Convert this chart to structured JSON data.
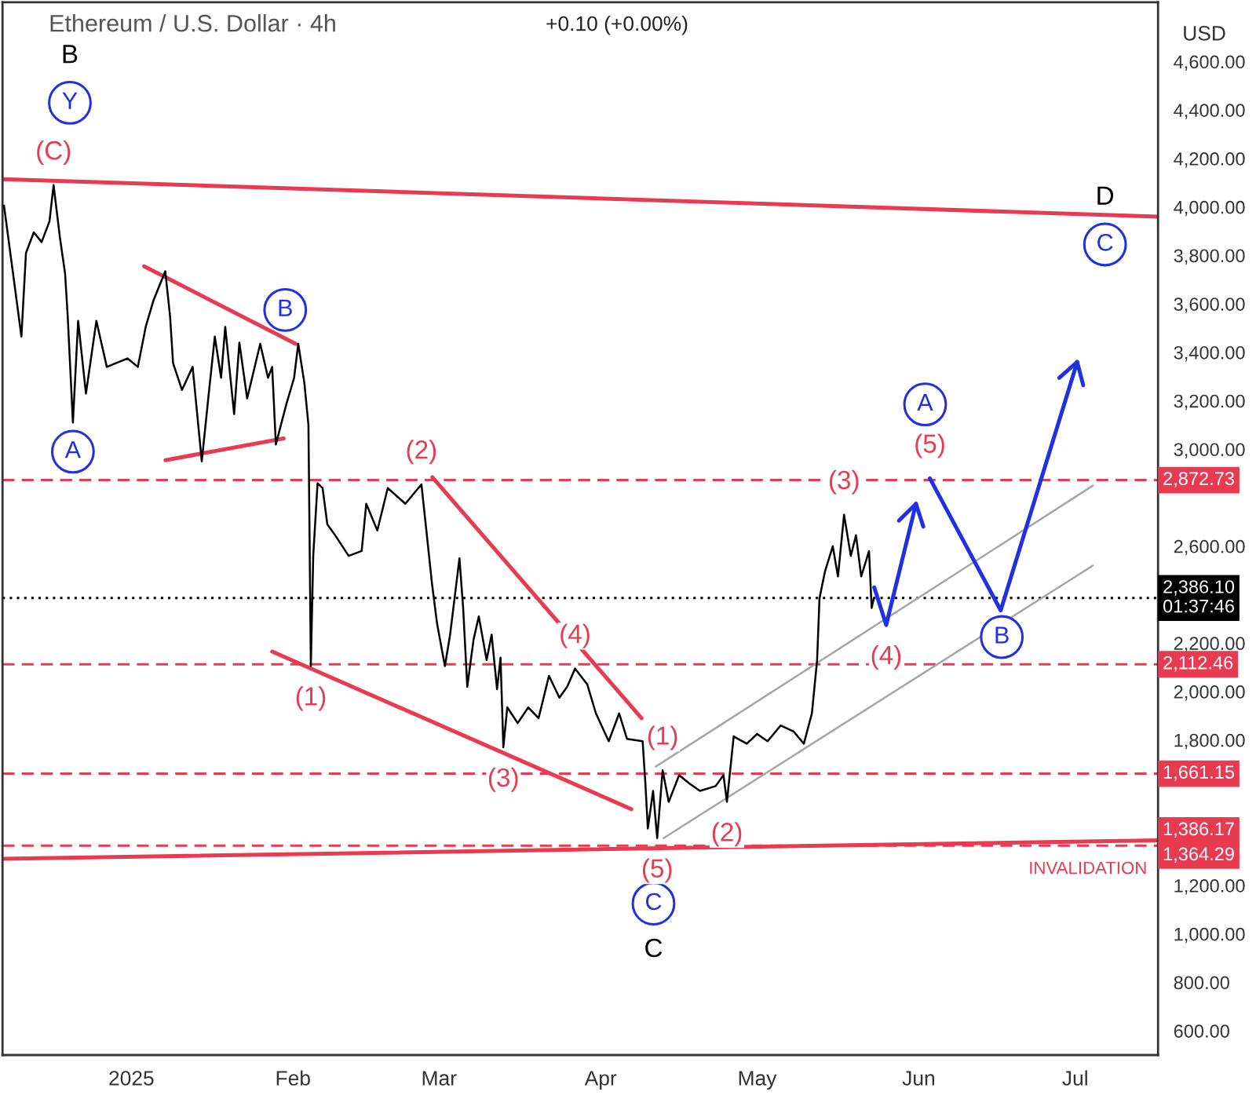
{
  "chart_data": {
    "type": "line",
    "title": "Ethereum / U.S. Dollar · 4h",
    "subtitle": "+0.10 (+0.00%)",
    "ylabel": "USD",
    "xlim": [
      "2024-12-07T07:00",
      "2025-07-16T21:00"
    ],
    "ylim": [
      500,
      4845
    ],
    "xticks": [
      {
        "value": "2025-01-01",
        "label": "2025"
      },
      {
        "value": "2025-02-01",
        "label": "Feb"
      },
      {
        "value": "2025-03-01",
        "label": "Mar"
      },
      {
        "value": "2025-04-01",
        "label": "Apr"
      },
      {
        "value": "2025-05-01",
        "label": "May"
      },
      {
        "value": "2025-06-01",
        "label": "Jun"
      },
      {
        "value": "2025-07-01",
        "label": "Jul"
      }
    ],
    "yticks": [
      {
        "value": 600,
        "label": "600.00"
      },
      {
        "value": 800,
        "label": "800.00"
      },
      {
        "value": 1000,
        "label": "1,000.00"
      },
      {
        "value": 1200,
        "label": "1,200.00"
      },
      {
        "value": 1800,
        "label": "1,800.00"
      },
      {
        "value": 2000,
        "label": "2,000.00"
      },
      {
        "value": 2200,
        "label": "2,200.00"
      },
      {
        "value": 2600,
        "label": "2,600.00"
      },
      {
        "value": 3000,
        "label": "3,000.00"
      },
      {
        "value": 3200,
        "label": "3,200.00"
      },
      {
        "value": 3400,
        "label": "3,400.00"
      },
      {
        "value": 3600,
        "label": "3,600.00"
      },
      {
        "value": 3800,
        "label": "3,800.00"
      },
      {
        "value": 4000,
        "label": "4,000.00"
      },
      {
        "value": 4200,
        "label": "4,200.00"
      },
      {
        "value": 4400,
        "label": "4,400.00"
      },
      {
        "value": 4600,
        "label": "4,600.00"
      }
    ],
    "ref_lines": [
      {
        "axis": "y",
        "value": 2872.73,
        "label": "2,872.73",
        "color": "#e83a50",
        "line_style": "dashed"
      },
      {
        "axis": "y",
        "value": 2386.1,
        "label": "2,386.10\n01:37:46",
        "color": "#000000",
        "line_style": "dotted"
      },
      {
        "axis": "y",
        "value": 2112.46,
        "label": "2,112.46",
        "color": "#e83a50",
        "line_style": "dashed"
      },
      {
        "axis": "y",
        "value": 1661.15,
        "label": "1,661.15",
        "color": "#e83a50",
        "line_style": "dashed"
      },
      {
        "axis": "y",
        "value": 1364.29,
        "label": "1,364.29",
        "color": "#e83a50",
        "line_style": "dashed"
      }
    ],
    "series": [
      {
        "color": "#000000",
        "x": [
          "2024-12-07T14:00",
          "2024-12-10T22:00",
          "2024-12-11T19:00",
          "2024-12-13T07:00",
          "2024-12-14T19:00",
          "2024-12-16T07:00",
          "2024-12-17T02:00",
          "2024-12-18T07:00",
          "2024-12-19T07:00",
          "2024-12-19T19:00",
          "2024-12-20T19:00",
          "2024-12-21T19:00",
          "2024-12-23T07:00",
          "2024-12-25T07:00",
          "2024-12-27T07:00",
          "2024-12-31T06:00",
          "2025-01-02T06:00",
          "2025-01-03T18:00",
          "2025-01-05T06:00",
          "2025-01-07T12:00",
          "2025-01-08T10:00",
          "2025-01-09T00:00",
          "2025-01-10T17:00",
          "2025-01-12T18:00",
          "2025-01-14T12:00",
          "2025-01-15T18:00",
          "2025-01-17T00:00",
          "2025-01-18T05:00",
          "2025-01-19T00:00",
          "2025-01-20T17:00",
          "2025-01-21T17:00",
          "2025-01-23T05:00",
          "2025-01-25T17:00",
          "2025-01-27T05:00",
          "2025-01-28T00:00",
          "2025-01-28T17:00",
          "2025-01-30T17:00",
          "2025-02-01T05:00",
          "2025-02-02T00:00",
          "2025-02-03T04:00",
          "2025-02-03T23:00",
          "2025-02-04T10:00",
          "2025-02-04T21:00",
          "2025-02-05T17:00",
          "2025-02-06T16:00",
          "2025-02-07T14:00",
          "2025-02-09T02:00",
          "2025-02-11T16:00",
          "2025-02-14T04:00",
          "2025-02-15T01:00",
          "2025-02-17T04:00",
          "2025-02-19T04:00",
          "2025-02-22T13:00",
          "2025-02-25T15:00",
          "2025-02-26T16:00",
          "2025-02-27T15:00",
          "2025-02-28T15:00",
          "2025-03-02T03:00",
          "2025-03-03T03:00",
          "2025-03-04T22:00",
          "2025-03-05T15:00",
          "2025-03-06T10:00",
          "2025-03-07T15:00",
          "2025-03-08T15:00",
          "2025-03-10T03:00",
          "2025-03-11T02:00",
          "2025-03-12T03:00",
          "2025-03-12T19:00",
          "2025-03-13T08:00",
          "2025-03-14T02:00",
          "2025-03-16T02:00",
          "2025-03-18T03:00",
          "2025-03-20T02:00",
          "2025-03-22T02:00",
          "2025-03-24T02:00",
          "2025-03-25T14:00",
          "2025-03-27T02:00",
          "2025-03-29T10:00",
          "2025-03-31T02:00",
          "2025-04-02T13:00",
          "2025-04-04T13:00",
          "2025-04-06T01:00",
          "2025-04-09T01:00",
          "2025-04-09T13:00",
          "2025-04-10T01:00",
          "2025-04-11T01:00",
          "2025-04-11T20:00",
          "2025-04-12T21:00",
          "2025-04-14T01:00",
          "2025-04-16T01:00",
          "2025-04-18T01:00",
          "2025-04-20T01:00",
          "2025-04-23T01:00",
          "2025-04-24T13:00",
          "2025-04-25T05:00",
          "2025-04-26T12:00",
          "2025-04-29T00:00",
          "2025-05-01T00:00",
          "2025-05-03T00:00",
          "2025-05-05T12:00",
          "2025-05-08T00:00",
          "2025-05-09T23:00",
          "2025-05-11T12:00",
          "2025-05-12T12:00",
          "2025-05-12T23:00",
          "2025-05-14T00:00",
          "2025-05-15T12:00",
          "2025-05-16T12:00",
          "2025-05-17T16:00",
          "2025-05-18T23:00",
          "2025-05-19T23:00",
          "2025-05-20T23:00",
          "2025-05-22T11:00",
          "2025-05-22T23:00",
          "2025-05-23T09:00"
        ],
        "values": [
          4005,
          3465,
          3810,
          3895,
          3855,
          3940,
          4090,
          3875,
          3725,
          3550,
          3110,
          3530,
          3230,
          3530,
          3340,
          3375,
          3340,
          3505,
          3615,
          3735,
          3550,
          3355,
          3245,
          3340,
          2950,
          3210,
          3465,
          3295,
          3505,
          3145,
          3440,
          3210,
          3435,
          3295,
          3340,
          3020,
          3185,
          3295,
          3435,
          3275,
          3100,
          2105,
          2560,
          2860,
          2840,
          2690,
          2645,
          2560,
          2580,
          2775,
          2665,
          2840,
          2775,
          2855,
          2645,
          2450,
          2280,
          2105,
          2235,
          2550,
          2345,
          2020,
          2215,
          2310,
          2130,
          2235,
          2010,
          2140,
          1770,
          1935,
          1870,
          1935,
          1890,
          2065,
          1975,
          2020,
          2095,
          2030,
          1910,
          1795,
          1910,
          1805,
          1795,
          1630,
          1435,
          1590,
          1395,
          1675,
          1545,
          1655,
          1620,
          1590,
          1610,
          1655,
          1545,
          1815,
          1785,
          1825,
          1795,
          1860,
          1835,
          1785,
          1910,
          2130,
          2385,
          2495,
          2600,
          2475,
          2730,
          2560,
          2645,
          2475,
          2580,
          2345,
          2385
        ]
      },
      {
        "color": "#e83a50",
        "x": [
          "2024-12-07T07:00",
          "2025-07-16T21:00"
        ],
        "values": [
          4115,
          3960
        ]
      },
      {
        "color": "#e83a50",
        "x": [
          "2025-01-03T11:00",
          "2025-02-01T12:00"
        ],
        "values": [
          3755,
          3435
        ]
      },
      {
        "color": "#e83a50",
        "x": [
          "2025-01-07T13:00",
          "2025-01-30T05:00"
        ],
        "values": [
          2955,
          3045
        ]
      },
      {
        "color": "#e83a50",
        "x": [
          "2025-02-27T17:00",
          "2025-04-08T20:00"
        ],
        "values": [
          2885,
          1890
        ]
      },
      {
        "color": "#e83a50",
        "x": [
          "2025-01-28T00:00",
          "2025-04-06T21:00"
        ],
        "values": [
          2165,
          1515
        ]
      },
      {
        "color": "#e83a50",
        "x": [
          "2024-12-07T07:00",
          "2025-07-16T21:00"
        ],
        "values": [
          1310,
          1386.17
        ],
        "value_labels": [
          null,
          "1,386.17"
        ]
      },
      {
        "color": "#a6a6a6",
        "x": [
          "2025-04-11T13:00",
          "2025-07-04T09:00"
        ],
        "values": [
          1690,
          2850
        ]
      },
      {
        "color": "#a6a6a6",
        "x": [
          "2025-04-13T01:00",
          "2025-07-04T09:00"
        ],
        "values": [
          1395,
          2520
        ]
      },
      {
        "color": "#2130e0",
        "x": [
          "2025-05-23T11:00",
          "2025-05-25T18:00",
          "2025-05-31T11:00"
        ],
        "values": [
          2430,
          2275,
          2775
        ]
      },
      {
        "color": "#2130e0",
        "x": [
          "2025-06-03T03:00",
          "2025-06-16T17:00",
          "2025-07-01T09:00"
        ],
        "values": [
          2880,
          2335,
          3360
        ]
      },
      {
        "type": "scatter",
        "marker": "circle",
        "color": "#2130e0",
        "x": [
          "2024-12-20T05:00",
          "2024-12-20T19:00",
          "2025-01-30T12:00",
          "2025-04-11T03:00",
          "2025-06-02T05:00",
          "2025-06-16T22:00",
          "2025-07-06T17:00"
        ],
        "values": [
          4430,
          2990,
          3575,
          1125,
          3185,
          2225,
          3845
        ],
        "value_labels": [
          "Y",
          "A",
          "B",
          "C",
          "A",
          "B",
          "C"
        ]
      }
    ],
    "annotations": [
      {
        "text": "B",
        "x": "2024-12-20T05:00",
        "y": 4430
      },
      {
        "text": "(C)",
        "x": "2024-12-17T02:00",
        "y": 4090
      },
      {
        "text": "(1)",
        "x": "2025-02-04T10:00",
        "y": 2105
      },
      {
        "text": "(2)",
        "x": "2025-02-25T15:00",
        "y": 2855
      },
      {
        "text": "(3)",
        "x": "2025-03-13T08:00",
        "y": 1770
      },
      {
        "text": "(4)",
        "x": "2025-03-27T02:00",
        "y": 2095
      },
      {
        "text": "(5)",
        "x": "2025-04-11T20:00",
        "y": 1395
      },
      {
        "text": "C",
        "x": "2025-04-11T03:00",
        "y": 1125
      },
      {
        "text": "(1)",
        "x": "2025-04-12T21:00",
        "y": 1675
      },
      {
        "text": "(2)",
        "x": "2025-04-25T05:00",
        "y": 1545
      },
      {
        "text": "(3)",
        "x": "2025-05-17T16:00",
        "y": 2730
      },
      {
        "text": "(4)",
        "x": "2025-05-25T18:00",
        "y": 2275
      },
      {
        "text": "(5)",
        "x": "2025-06-03T03:00",
        "y": 2880
      },
      {
        "text": "D",
        "x": "2025-07-06T17:00",
        "y": 3845
      },
      {
        "text": "INVALIDATION",
        "x": "2025-07-03T10:00",
        "y": 1364.29
      }
    ]
  }
}
